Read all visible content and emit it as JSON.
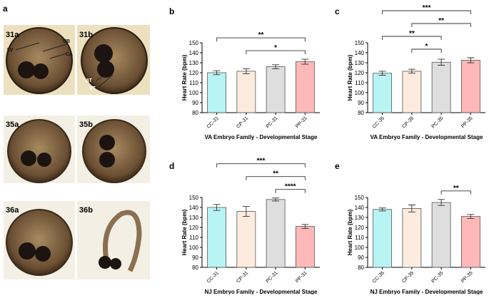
{
  "panel_a": {
    "label": "a",
    "images": [
      "31a",
      "31b",
      "35a",
      "35b",
      "36a",
      "36b"
    ],
    "annotations": [
      "LV",
      "UB",
      "CA",
      "AT",
      "VT"
    ]
  },
  "chart_data": [
    {
      "type": "bar",
      "panel_label": "b",
      "ylabel": "Heart Rate (bpm)",
      "xlabel": "VA Embryo Family - Developmental Stage",
      "categories": [
        "CC-31",
        "CP-31",
        "PC-31",
        "PP-31"
      ],
      "values": [
        120,
        121.5,
        126,
        131
      ],
      "errors": [
        2,
        2.5,
        2,
        2.5
      ],
      "colors": [
        "#b8f4f4",
        "#fdebdd",
        "#dedede",
        "#ffb8b8"
      ],
      "ylim": [
        80,
        150
      ],
      "yticks": [
        80,
        90,
        100,
        110,
        120,
        130,
        140,
        150
      ],
      "comparisons": [
        {
          "label": "*",
          "groups": [
            "CP-31",
            "PP-31"
          ]
        },
        {
          "label": "**",
          "groups": [
            "CC-31",
            "PP-31"
          ]
        }
      ]
    },
    {
      "type": "bar",
      "panel_label": "c",
      "ylabel": "Heart Rate (bpm)",
      "xlabel": "VA Embryo Family - Developmental Stage",
      "categories": [
        "CC-35",
        "CP-35",
        "PC-35",
        "PP-35"
      ],
      "values": [
        119.5,
        121.5,
        130.5,
        132.5
      ],
      "errors": [
        2,
        2,
        3,
        2.5
      ],
      "colors": [
        "#b8f4f4",
        "#fdebdd",
        "#dedede",
        "#ffb8b8"
      ],
      "ylim": [
        80,
        150
      ],
      "yticks": [
        80,
        90,
        100,
        110,
        120,
        130,
        140,
        150
      ],
      "comparisons": [
        {
          "label": "*",
          "groups": [
            "CP-35",
            "PC-35"
          ]
        },
        {
          "label": "**",
          "groups": [
            "CC-35",
            "PC-35"
          ]
        },
        {
          "label": "**",
          "groups": [
            "CP-35",
            "PP-35"
          ]
        },
        {
          "label": "***",
          "groups": [
            "CC-35",
            "PP-35"
          ]
        }
      ]
    },
    {
      "type": "bar",
      "panel_label": "d",
      "ylabel": "Heart Rate (bpm)",
      "xlabel": "NJ Embryo Family - Developmental Stage",
      "categories": [
        "CC-31",
        "CP-31",
        "PC-31",
        "PP-31"
      ],
      "values": [
        140,
        136,
        148,
        121
      ],
      "errors": [
        3,
        5,
        1.5,
        2
      ],
      "colors": [
        "#b8f4f4",
        "#fdebdd",
        "#dedede",
        "#ffb8b8"
      ],
      "ylim": [
        80,
        150
      ],
      "yticks": [
        80,
        90,
        100,
        110,
        120,
        130,
        140,
        150
      ],
      "comparisons": [
        {
          "label": "****",
          "groups": [
            "PC-31",
            "PP-31"
          ]
        },
        {
          "label": "**",
          "groups": [
            "CP-31",
            "PP-31"
          ]
        },
        {
          "label": "***",
          "groups": [
            "CC-31",
            "PP-31"
          ]
        }
      ]
    },
    {
      "type": "bar",
      "panel_label": "e",
      "ylabel": "Heart Rate (bpm)",
      "xlabel": "NJ Embryo Family - Developmental Stage",
      "categories": [
        "CC-35",
        "CP-35",
        "PC-35",
        "PP-35"
      ],
      "values": [
        138,
        139,
        145,
        131
      ],
      "errors": [
        1.5,
        3.5,
        3,
        2
      ],
      "colors": [
        "#b8f4f4",
        "#fdebdd",
        "#dedede",
        "#ffb8b8"
      ],
      "ylim": [
        80,
        150
      ],
      "yticks": [
        80,
        90,
        100,
        110,
        120,
        130,
        140,
        150
      ],
      "comparisons": [
        {
          "label": "**",
          "groups": [
            "PC-35",
            "PP-35"
          ]
        }
      ]
    }
  ]
}
